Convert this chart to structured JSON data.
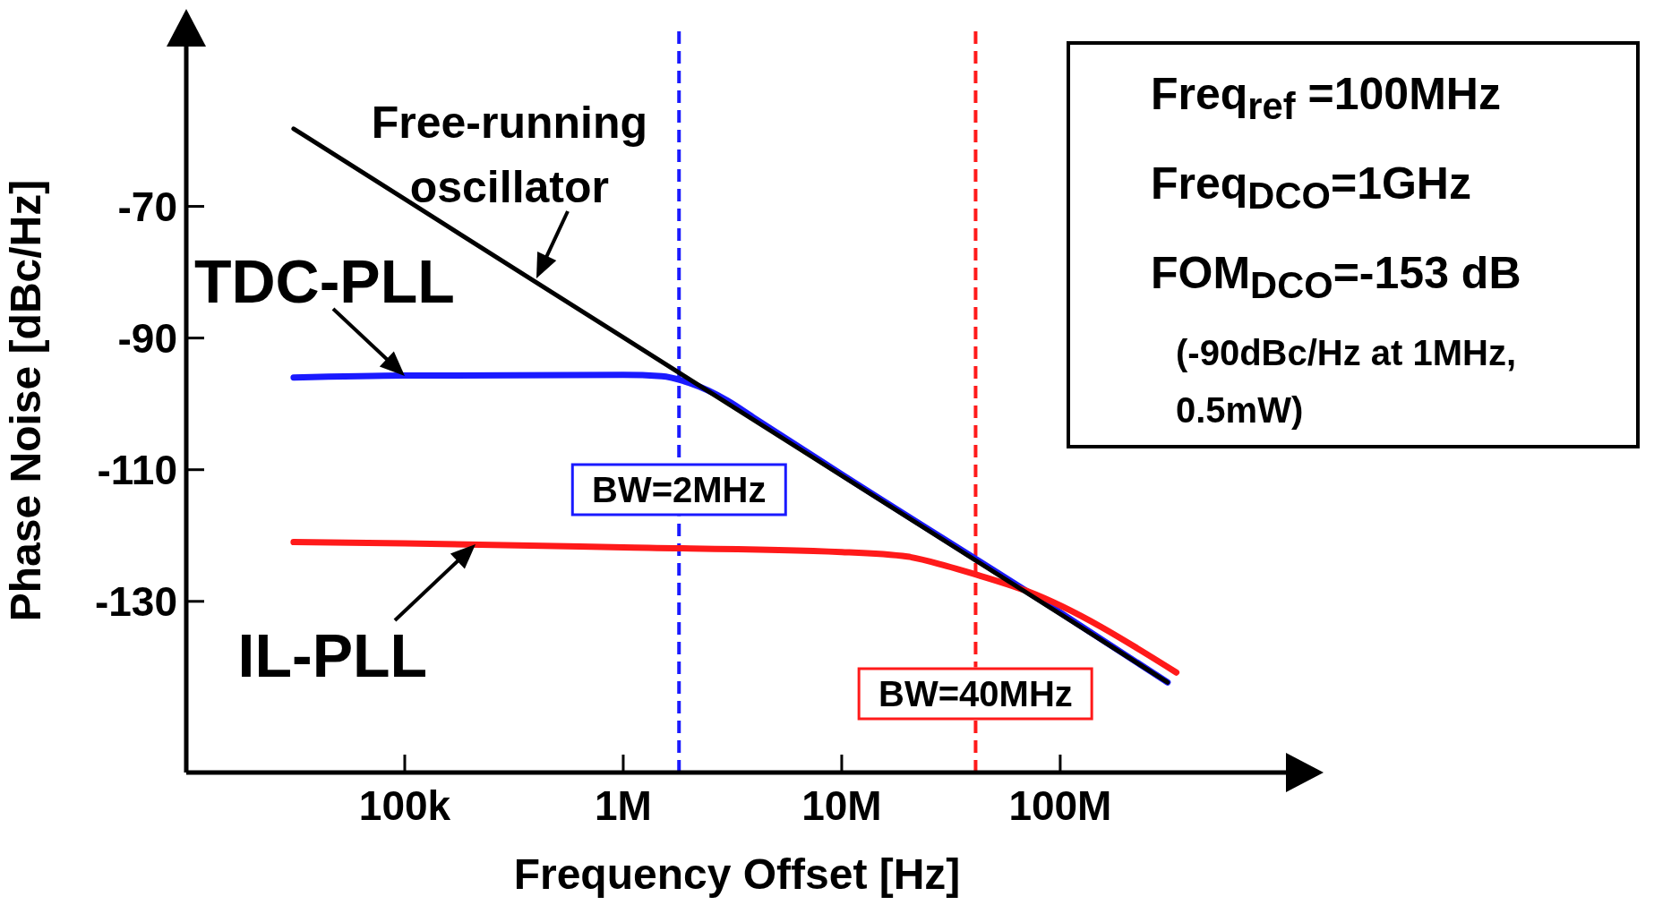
{
  "chart_data": {
    "type": "line",
    "xlabel": "Frequency Offset [Hz]",
    "ylabel": "Phase Noise [dBc/Hz]",
    "log": "x",
    "xlim": [
      10000,
      1100000000
    ],
    "xticks": [
      {
        "value": 100000,
        "label": "100k"
      },
      {
        "value": 1000000,
        "label": "1M"
      },
      {
        "value": 10000000,
        "label": "10M"
      },
      {
        "value": 100000000,
        "label": "100M"
      }
    ],
    "ylim": [
      -156,
      -43
    ],
    "yticks": [
      -70,
      -90,
      -110,
      -130
    ],
    "legend": false,
    "marker": "none",
    "line_style": "solid",
    "series": [
      {
        "color": "#000000",
        "x": [
          31000,
          100000,
          1000000,
          10000000,
          100000000,
          310000000
        ],
        "values": [
          -58.2,
          -68.9,
          -89.9,
          -110.9,
          -131.9,
          -142.3
        ]
      },
      {
        "color": "#1a1aff",
        "x": [
          31000,
          100000,
          1000000,
          1500000,
          2000000,
          3000000,
          4000000,
          10000000,
          100000000,
          310000000
        ],
        "values": [
          -96,
          -95.7,
          -95.6,
          -95.8,
          -96.8,
          -99.5,
          -102.2,
          -110.7,
          -131.7,
          -142.3
        ]
      },
      {
        "color": "#ff1a1a",
        "x": [
          31000,
          100000,
          1000000,
          10000000,
          20000000,
          30000000,
          40000000,
          70000000,
          340000000
        ],
        "values": [
          -121,
          -121.2,
          -121.8,
          -122.5,
          -123.2,
          -124.6,
          -125.8,
          -128.4,
          -140.8
        ]
      }
    ],
    "ref_lines": [
      {
        "axis": "x",
        "value": 1800000,
        "color": "#1a1aff",
        "line_style": "dashed"
      },
      {
        "axis": "x",
        "value": 41000000,
        "color": "#ff1a1a",
        "line_style": "dashed"
      }
    ],
    "annotations": [
      "Freq$_{ref}$ =100MHz",
      "Freq$_{DCO}$=1GHz",
      "FOM$_{DCO}$=-153 dB",
      "(-90dBc/Hz at 1MHz,",
      "0.5mW)",
      {
        "text": "Free-running oscillator",
        "x": 400000,
        "y": -81
      },
      {
        "text": "TDC-PLL",
        "x": 100000,
        "y": -95.7
      },
      {
        "text": "IL-PLL",
        "x": 210000,
        "y": -121.3
      },
      {
        "text": "BW=2MHz",
        "x": 1800000,
        "y": -113
      },
      {
        "text": "BW=40MHz",
        "x": 41000000,
        "y": -144
      }
    ]
  }
}
